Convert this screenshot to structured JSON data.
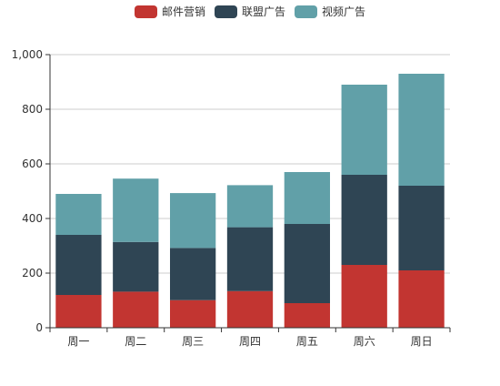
{
  "chart_data": {
    "type": "bar",
    "stacked": true,
    "categories": [
      "周一",
      "周二",
      "周三",
      "周四",
      "周五",
      "周六",
      "周日"
    ],
    "series": [
      {
        "name": "邮件营销",
        "color": "#c23531",
        "values": [
          120,
          132,
          101,
          134,
          90,
          230,
          210
        ]
      },
      {
        "name": "联盟广告",
        "color": "#2f4554",
        "values": [
          220,
          182,
          191,
          234,
          290,
          330,
          310
        ]
      },
      {
        "name": "视频广告",
        "color": "#61a0a8",
        "values": [
          150,
          232,
          201,
          154,
          190,
          330,
          410
        ]
      }
    ],
    "ylim": [
      0,
      1000
    ],
    "yticks": [
      0,
      200,
      400,
      600,
      800,
      1000
    ],
    "ytick_labels": [
      "0",
      "200",
      "400",
      "600",
      "800",
      "1,000"
    ],
    "grid": true,
    "legend_position": "top-center",
    "title": "",
    "xlabel": "",
    "ylabel": ""
  }
}
